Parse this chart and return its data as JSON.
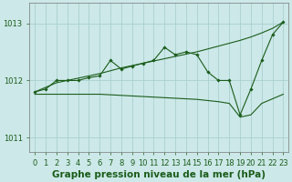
{
  "xlabel": "Graphe pression niveau de la mer (hPa)",
  "hours": [
    0,
    1,
    2,
    3,
    4,
    5,
    6,
    7,
    8,
    9,
    10,
    11,
    12,
    13,
    14,
    15,
    16,
    17,
    18,
    19,
    20,
    21,
    22,
    23
  ],
  "main_y": [
    1011.8,
    1011.85,
    1012.0,
    1012.0,
    1012.0,
    1012.05,
    1012.08,
    1012.35,
    1012.2,
    1012.25,
    1012.3,
    1012.35,
    1012.58,
    1012.45,
    1012.5,
    1012.45,
    1012.15,
    1012.0,
    1012.0,
    1011.4,
    1011.85,
    1012.35,
    1012.8,
    1013.02
  ],
  "upper_y": [
    1011.8,
    1011.88,
    1011.96,
    1012.0,
    1012.04,
    1012.08,
    1012.12,
    1012.17,
    1012.22,
    1012.26,
    1012.3,
    1012.34,
    1012.38,
    1012.42,
    1012.46,
    1012.5,
    1012.55,
    1012.6,
    1012.65,
    1012.7,
    1012.76,
    1012.83,
    1012.91,
    1013.02
  ],
  "lower_y": [
    1011.76,
    1011.76,
    1011.76,
    1011.76,
    1011.76,
    1011.76,
    1011.76,
    1011.75,
    1011.74,
    1011.73,
    1011.72,
    1011.71,
    1011.7,
    1011.69,
    1011.68,
    1011.67,
    1011.65,
    1011.63,
    1011.6,
    1011.36,
    1011.4,
    1011.6,
    1011.68,
    1011.76
  ],
  "bg_color": "#cce8e8",
  "grid_color": "#aad0d0",
  "line_color": "#1a5c1a",
  "ylim_min": 1010.75,
  "ylim_max": 1013.35,
  "yticks": [
    1011,
    1012,
    1013
  ],
  "xlabel_fontsize": 7.5,
  "tick_fontsize": 6.0
}
